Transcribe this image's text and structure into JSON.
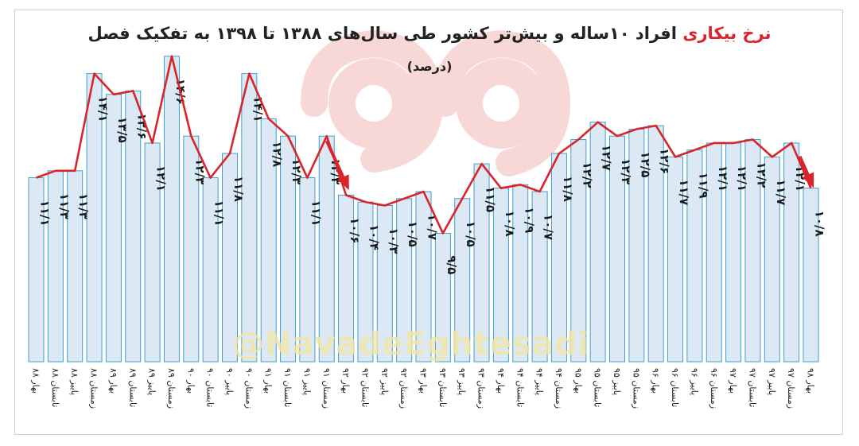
{
  "title": {
    "prefix": "نرخ بیکاری",
    "rest": " افراد ۱۰ساله و بیش‌تر کشور طی سال‌های ۱۳۸۸ تا ۱۳۹۸ به تفکیک فصل"
  },
  "subtitle": "(درصد)",
  "watermark": "@NavadeEghtesadi",
  "colors": {
    "bar_fill": "#dce9f5",
    "bar_stroke": "#3fa0d0",
    "line": "#d8242a",
    "arrow": "#d8242a",
    "watermark_logo": "#f0b8b8"
  },
  "chart_data": {
    "type": "bar",
    "categories": [
      "بهار ۸۸",
      "تابستان ۸۸",
      "پاییز ۸۸",
      "زمستان ۸۸",
      "بهار ۸۹",
      "تابستان ۸۹",
      "پاییز ۸۹",
      "زمستان ۸۹",
      "بهار ۹۰",
      "تابستان ۹۰",
      "پاییز ۹۰",
      "زمستان ۹۰",
      "بهار ۹۱",
      "تابستان ۹۱",
      "پاییز ۹۱",
      "زمستان ۹۱",
      "بهار ۹۲",
      "تابستان ۹۲",
      "پاییز ۹۲",
      "زمستان ۹۲",
      "بهار ۹۳",
      "تابستان ۹۳",
      "پاییز ۹۳",
      "زمستان ۹۳",
      "بهار ۹۴",
      "تابستان ۹۴",
      "پاییز ۹۴",
      "زمستان ۹۴",
      "بهار ۹۵",
      "تابستان ۹۵",
      "پاییز ۹۵",
      "زمستان ۹۵",
      "بهار ۹۶",
      "تابستان ۹۶",
      "پاییز ۹۶",
      "زمستان ۹۶",
      "بهار ۹۷",
      "تابستان ۹۷",
      "پاییز ۹۷",
      "زمستان ۹۷",
      "بهار ۹۸"
    ],
    "values": [
      11.1,
      11.3,
      11.3,
      14.1,
      13.5,
      13.6,
      12.1,
      14.6,
      12.3,
      11.1,
      11.8,
      14.1,
      12.8,
      12.3,
      11.1,
      12.3,
      10.6,
      10.4,
      10.3,
      10.5,
      10.7,
      9.5,
      10.5,
      11.5,
      10.8,
      10.9,
      10.7,
      11.8,
      12.2,
      12.7,
      12.3,
      12.5,
      12.6,
      11.7,
      11.9,
      12.1,
      12.1,
      12.2,
      11.7,
      12.1,
      10.8
    ],
    "labels": [
      "۱۱/۱",
      "۱۱/۳",
      "۱۱/۳",
      "۱۴/۱",
      "۱۳/۵",
      "۱۳/۶",
      "۱۲/۱",
      "۱۴/۶",
      "۱۲/۳",
      "۱۱/۱",
      "۱۱/۸",
      "۱۴/۱",
      "۱۲/۸",
      "۱۲/۳",
      "۱۱/۱",
      "۱۲/۳",
      "۱۰/۶",
      "۱۰/۴",
      "۱۰/۳",
      "۱۰/۵",
      "۱۰/۷",
      "۹/۵",
      "۱۰/۵",
      "۱۱/۵",
      "۱۰/۸",
      "۱۰/۹",
      "۱۰/۷",
      "۱۱/۸",
      "۱۲/۲",
      "۱۲/۷",
      "۱۲/۳",
      "۱۲/۵",
      "۱۲/۶",
      "۱۱/۷",
      "۱۱/۹",
      "۱۲/۱",
      "۱۲/۱",
      "۱۲/۲",
      "۱۱/۷",
      "۱۲/۱",
      "۱۰/۸"
    ],
    "highlight_arrows": [
      15,
      40
    ],
    "ylim": [
      5.8,
      14.8
    ],
    "grid": false,
    "legend": "none"
  }
}
